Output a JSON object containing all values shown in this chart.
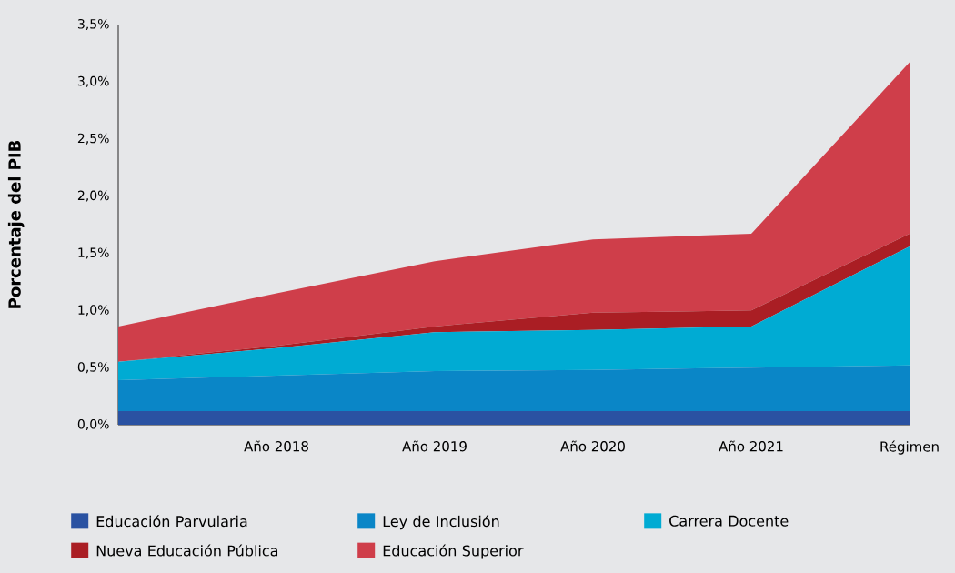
{
  "chart_data": {
    "type": "area",
    "stacked": true,
    "ylabel": "Porcentaje del PIB",
    "categories": [
      null,
      "Año 2018",
      "Año 2019",
      "Año 2020",
      "Año 2021",
      "Régimen"
    ],
    "ylim": [
      0,
      3.5
    ],
    "yticks": [
      {
        "value": 0,
        "label": "0,0%"
      },
      {
        "value": 0.5,
        "label": "0,5%"
      },
      {
        "value": 1.0,
        "label": "1,0%"
      },
      {
        "value": 1.5,
        "label": "1,5%"
      },
      {
        "value": 2.0,
        "label": "2,0%"
      },
      {
        "value": 2.5,
        "label": "2,5%"
      },
      {
        "value": 3.0,
        "label": "3,0%"
      },
      {
        "value": 3.5,
        "label": "3,5%"
      }
    ],
    "legend": "bottom",
    "series": [
      {
        "name": "Educación Parvularia",
        "color": "#2a52a2",
        "values": [
          0.12,
          0.12,
          0.12,
          0.12,
          0.12,
          0.12
        ]
      },
      {
        "name": "Ley de Inclusión",
        "color": "#0a86c7",
        "values": [
          0.27,
          0.31,
          0.35,
          0.36,
          0.38,
          0.4
        ]
      },
      {
        "name": "Carrera Docente",
        "color": "#00abd3",
        "values": [
          0.16,
          0.24,
          0.34,
          0.35,
          0.36,
          1.04
        ]
      },
      {
        "name": "Nueva Educación Pública",
        "color": "#aa1e24",
        "values": [
          0.0,
          0.02,
          0.05,
          0.15,
          0.14,
          0.11
        ]
      },
      {
        "name": "Educación Superior",
        "color": "#cf3e4a",
        "values": [
          0.31,
          0.46,
          0.57,
          0.64,
          0.67,
          1.5
        ]
      }
    ]
  }
}
